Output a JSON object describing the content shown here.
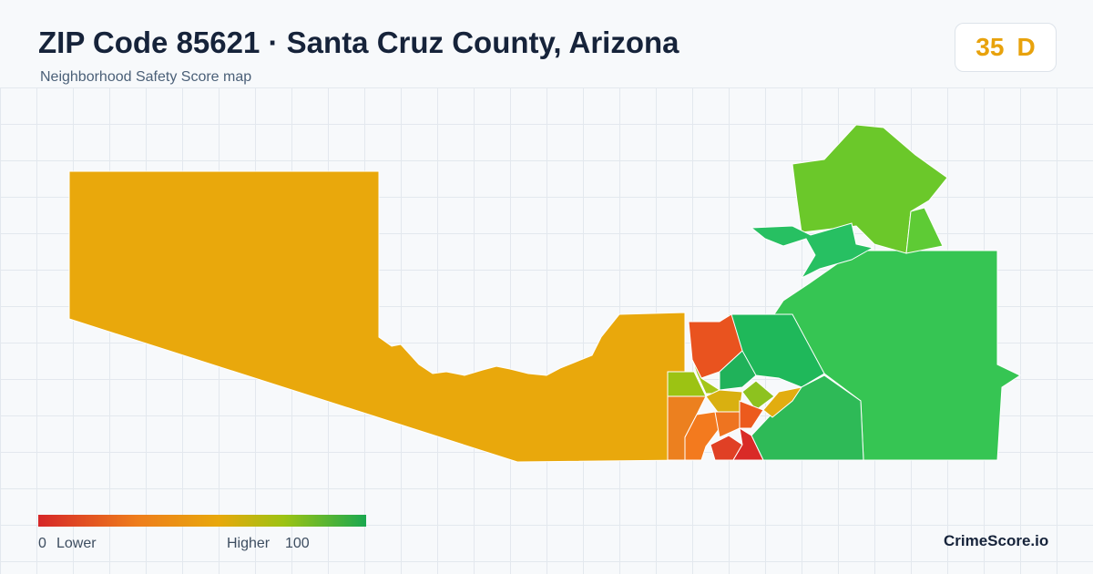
{
  "header": {
    "title": "ZIP Code 85621 · Santa Cruz County, Arizona",
    "subtitle": "Neighborhood Safety Score map"
  },
  "score": {
    "value": 35,
    "grade": "D"
  },
  "legend": {
    "min": 0,
    "min_label": "Lower",
    "max_label": "Higher",
    "max": 100
  },
  "footer": {
    "brand": "CrimeScore.io"
  }
}
